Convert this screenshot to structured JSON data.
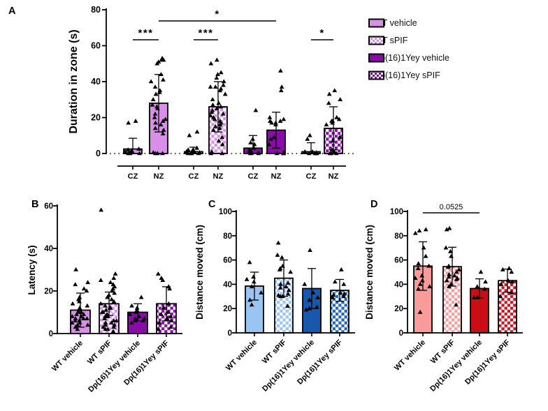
{
  "legend": {
    "items": [
      {
        "label": "WT vehicle",
        "style": "wt_vehicle"
      },
      {
        "label": "WT sPIF",
        "style": "wt_spif"
      },
      {
        "label": "Dp(16)1Yey vehicle",
        "style": "dp_vehicle"
      },
      {
        "label": "Dp(16)1Yey sPIF",
        "style": "dp_spif"
      }
    ]
  },
  "styles": {
    "wt_vehicle": {
      "fill": "#D78FE8",
      "checker": false
    },
    "wt_spif": {
      "fill": "#D78FE8",
      "checker": true
    },
    "dp_vehicle": {
      "fill": "#8A0CA8",
      "checker": false
    },
    "dp_spif": {
      "fill": "#8A0CA8",
      "checker": true
    },
    "blue_light": {
      "fill": "#9AC4F2",
      "checker": false
    },
    "blue_light_checker": {
      "fill": "#9AC4F2",
      "checker": true
    },
    "blue_dark": {
      "fill": "#1757AC",
      "checker": false
    },
    "blue_dark_checker": {
      "fill": "#2268C0",
      "checker": true
    },
    "red_light": {
      "fill": "#F89B9B",
      "checker": false
    },
    "red_light_checker": {
      "fill": "#F89B9B",
      "checker": true
    },
    "red_dark": {
      "fill": "#CB0E15",
      "checker": false
    },
    "red_dark_checker": {
      "fill": "#CB1420",
      "checker": true
    }
  },
  "chart_data": [
    {
      "id": "A",
      "type": "bar",
      "panel_label": "A",
      "ylabel": "Duration in zone (s)",
      "ylim": [
        0,
        80
      ],
      "yticks": [
        0,
        20,
        40,
        60,
        80
      ],
      "zero_line": "dotted",
      "bars": [
        {
          "group": "WT vehicle",
          "zone": "CZ",
          "style": "wt_vehicle",
          "mean": 2.5,
          "sd": 6,
          "points": [
            0,
            0,
            0,
            0.5,
            1,
            1,
            1.5,
            2,
            2.5,
            17,
            18
          ]
        },
        {
          "group": "WT vehicle",
          "zone": "NZ",
          "style": "wt_vehicle",
          "mean": 28,
          "sd": 16,
          "points": [
            0,
            0,
            0,
            0.5,
            11,
            13,
            14,
            16,
            17,
            18,
            19,
            20,
            22,
            25,
            26,
            27,
            30,
            33,
            34,
            35,
            37,
            40,
            41,
            44,
            50,
            51,
            52,
            52,
            53
          ]
        },
        {
          "group": "WT sPIF",
          "zone": "CZ",
          "style": "wt_spif",
          "mean": 1,
          "sd": 2.5,
          "points": [
            0,
            0,
            0,
            0,
            0.5,
            0.5,
            1,
            1,
            1.5,
            2,
            2,
            3,
            10,
            12
          ]
        },
        {
          "group": "WT sPIF",
          "zone": "NZ",
          "style": "wt_spif",
          "mean": 26,
          "sd": 14,
          "points": [
            0,
            0,
            1,
            5,
            7,
            9,
            13,
            14,
            15,
            16,
            17,
            18,
            19,
            20,
            21,
            22,
            23,
            24,
            25,
            26,
            27,
            28,
            30,
            33,
            35,
            36,
            37,
            37,
            38,
            40,
            42,
            44,
            45,
            50,
            52
          ]
        },
        {
          "group": "Dp(16)1Yey vehicle",
          "zone": "CZ",
          "style": "dp_vehicle",
          "mean": 3,
          "sd": 7,
          "points": [
            0,
            0,
            0,
            0.5,
            1,
            1,
            2,
            3,
            5,
            6,
            8,
            24
          ]
        },
        {
          "group": "Dp(16)1Yey vehicle",
          "zone": "NZ",
          "style": "dp_vehicle",
          "mean": 13,
          "sd": 10,
          "points": [
            0,
            0,
            0,
            0.5,
            5,
            8,
            9,
            16,
            17,
            17,
            18,
            18,
            19,
            20,
            35,
            37,
            46
          ]
        },
        {
          "group": "Dp(16)1Yey sPIF",
          "zone": "CZ",
          "style": "dp_spif",
          "mean": 1,
          "sd": 5,
          "points": [
            0,
            0,
            0,
            0,
            0.5,
            1,
            1,
            8,
            10
          ]
        },
        {
          "group": "Dp(16)1Yey sPIF",
          "zone": "NZ",
          "style": "dp_spif",
          "mean": 14,
          "sd": 12,
          "points": [
            0,
            0,
            0,
            1,
            2,
            7,
            9,
            16,
            17,
            18,
            18,
            19,
            20,
            28,
            30,
            33,
            35
          ]
        }
      ],
      "annotations": [
        {
          "text": "***",
          "bars": [
            0,
            1
          ],
          "row": 0
        },
        {
          "text": "***",
          "bars": [
            2,
            3
          ],
          "row": 0
        },
        {
          "text": "*",
          "bars": [
            6,
            7
          ],
          "row": 0
        },
        {
          "text": "*",
          "bars": [
            1,
            5
          ],
          "row": 1
        }
      ]
    },
    {
      "id": "B",
      "type": "bar",
      "panel_label": "B",
      "ylabel": "Latency (s)",
      "ylim": [
        0,
        60
      ],
      "yticks": [
        0,
        20,
        40,
        60
      ],
      "bars": [
        {
          "group": "WT vehicle",
          "style": "wt_vehicle",
          "mean": 11,
          "sd": 8,
          "points": [
            2,
            3,
            4,
            4,
            5,
            5,
            6,
            6,
            7,
            7,
            7,
            8,
            8,
            9,
            9,
            10,
            10,
            11,
            12,
            13,
            14,
            15,
            16,
            17,
            20,
            21,
            23,
            24,
            30
          ]
        },
        {
          "group": "WT sPIF",
          "style": "wt_spif",
          "mean": 14,
          "sd": 5.5,
          "points": [
            1,
            2,
            2,
            3,
            3,
            4,
            4,
            5,
            5,
            6,
            6,
            7,
            8,
            8,
            9,
            10,
            10,
            11,
            12,
            12,
            13,
            14,
            15,
            16,
            17,
            18,
            19,
            20,
            21,
            22,
            23,
            24,
            25,
            26,
            28,
            58
          ]
        },
        {
          "group": "Dp(16)1Yey vehicle",
          "style": "dp_vehicle",
          "mean": 10,
          "sd": 4,
          "points": [
            5,
            6,
            6,
            7,
            7,
            8,
            9,
            10,
            11,
            12,
            13,
            17
          ]
        },
        {
          "group": "Dp(16)1Yey sPIF",
          "style": "dp_spif",
          "mean": 14,
          "sd": 8,
          "points": [
            2,
            3,
            5,
            6,
            7,
            8,
            9,
            10,
            12,
            14,
            21,
            22,
            25,
            26,
            28
          ]
        }
      ],
      "annotations": []
    },
    {
      "id": "C",
      "type": "bar",
      "panel_label": "C",
      "ylabel": "Distance moved (cm)",
      "ylim": [
        0,
        100
      ],
      "yticks": [
        0,
        20,
        40,
        60,
        80,
        100
      ],
      "bars": [
        {
          "group": "WT vehicle",
          "style": "blue_light",
          "mean": 38.5,
          "sd": 11.5,
          "points": [
            23,
            27,
            33,
            38,
            42,
            44,
            46,
            58
          ]
        },
        {
          "group": "WT sPIF",
          "style": "blue_light_checker",
          "mean": 45,
          "sd": 15,
          "points": [
            22,
            30,
            30,
            31,
            32,
            35,
            37,
            38,
            40,
            41,
            50,
            52,
            53,
            55,
            62,
            64,
            74
          ]
        },
        {
          "group": "Dp(16)1Yey vehicle",
          "style": "blue_dark",
          "mean": 36.5,
          "sd": 16.5,
          "points": [
            19,
            20,
            21,
            27,
            29,
            33,
            40,
            68
          ]
        },
        {
          "group": "Dp(16)1Yey sPIF",
          "style": "blue_dark_checker",
          "mean": 35,
          "sd": 9,
          "points": [
            29,
            30,
            31,
            32,
            33,
            40,
            42,
            52
          ]
        }
      ],
      "annotations": []
    },
    {
      "id": "D",
      "type": "bar",
      "panel_label": "D",
      "ylabel": "Distance moved (cm)",
      "ylim": [
        0,
        100
      ],
      "yticks": [
        0,
        20,
        40,
        60,
        80,
        100
      ],
      "bars": [
        {
          "group": "WT vehicle",
          "style": "red_light",
          "mean": 55,
          "sd": 20,
          "points": [
            17,
            36,
            38,
            40,
            43,
            45,
            47,
            53,
            55,
            57,
            63,
            70,
            82,
            84,
            85
          ]
        },
        {
          "group": "WT sPIF",
          "style": "red_light_checker",
          "mean": 54.5,
          "sd": 16,
          "points": [
            23,
            38,
            40,
            43,
            44,
            45,
            46,
            47,
            48,
            50,
            52,
            54,
            55,
            63,
            67,
            70,
            85,
            86
          ]
        },
        {
          "group": "Dp(16)1Yey vehicle",
          "style": "red_dark",
          "mean": 36.5,
          "sd": 8,
          "points": [
            29,
            29,
            36,
            38,
            42,
            50
          ]
        },
        {
          "group": "Dp(16)1Yey sPIF",
          "style": "red_dark_checker",
          "mean": 43,
          "sd": 9.5,
          "points": [
            30,
            33,
            40,
            42,
            43,
            50,
            52,
            53
          ]
        }
      ],
      "annotations": [
        {
          "text": "0.0525",
          "bars": [
            0,
            2
          ],
          "row": 0
        }
      ]
    }
  ]
}
